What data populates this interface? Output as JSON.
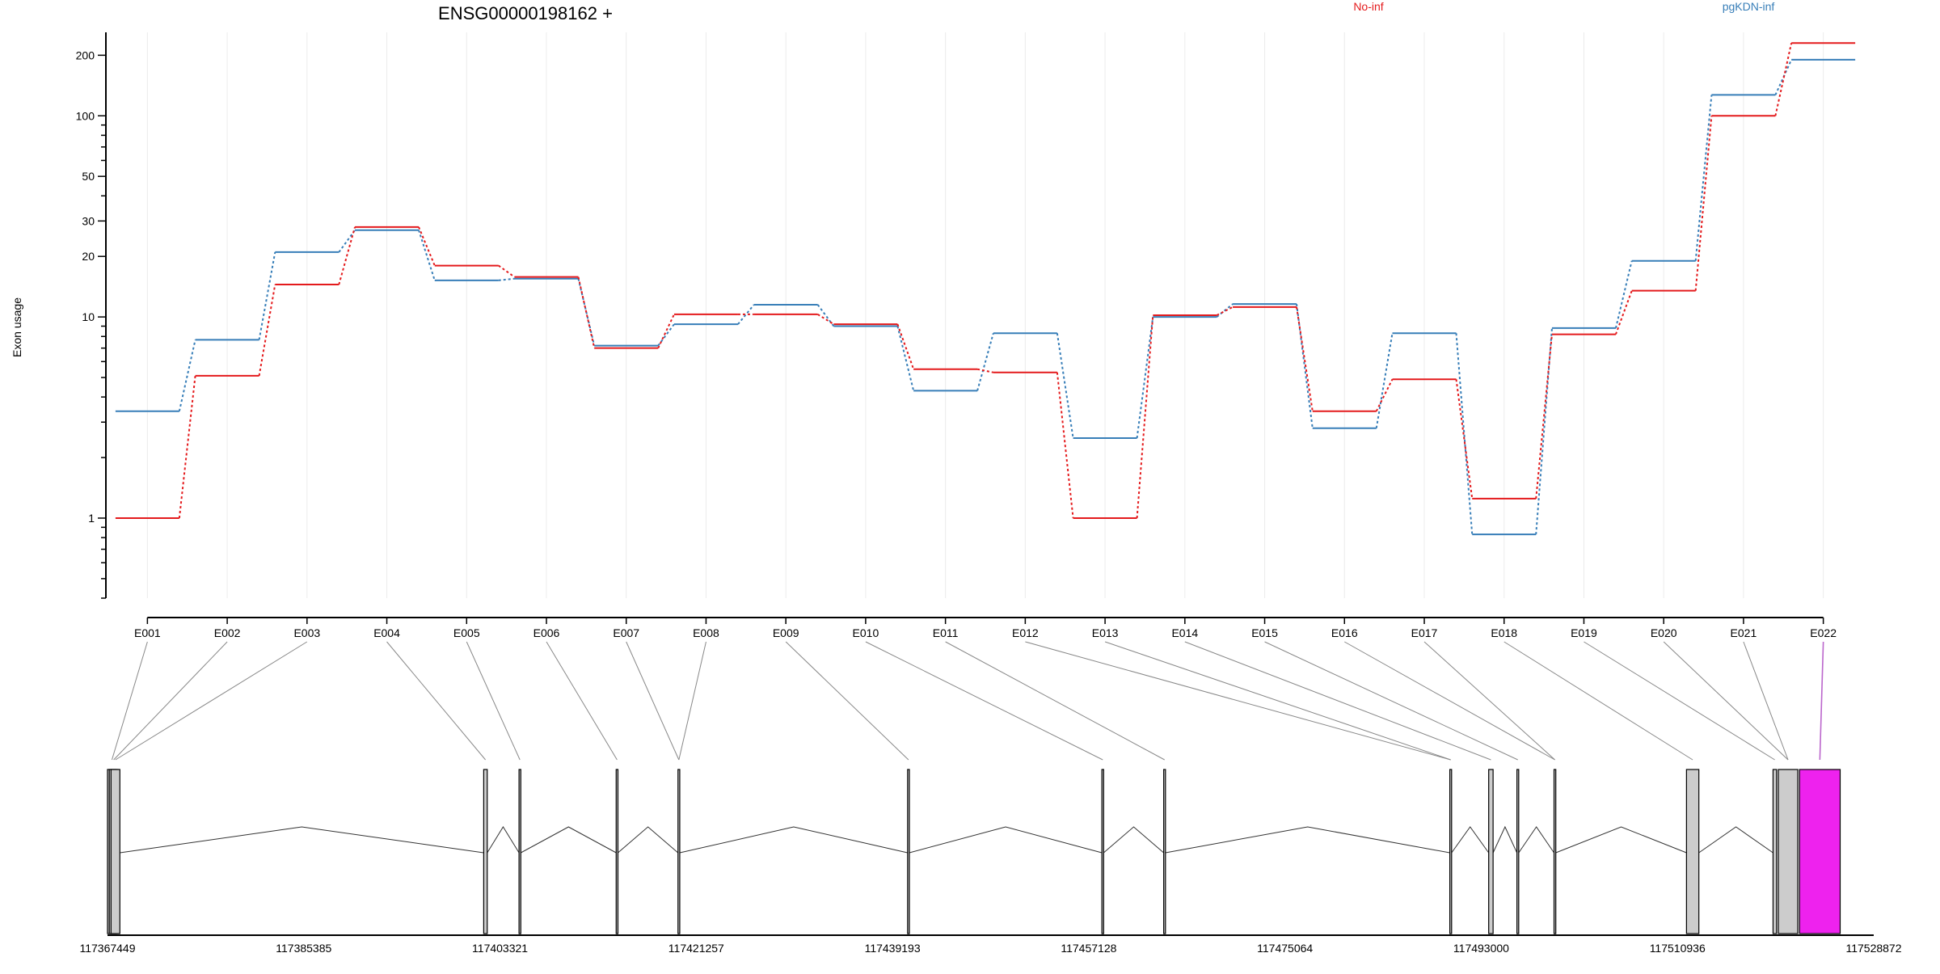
{
  "title": "ENSG00000198162 +",
  "colors": {
    "no_inf": "#e41a1c",
    "pgkdn_inf": "#377eb8",
    "exon_box": "#cccccc",
    "highlight_exon": "#ee22ee",
    "connector": "#888888",
    "highlight_connector": "#bb66cc"
  },
  "chart_data": {
    "type": "line",
    "title": "ENSG00000198162 +",
    "xlabel": "",
    "ylabel": "Exon usage",
    "yscale": "log",
    "ylim": [
      0.4,
      260
    ],
    "yticks": [
      1,
      10,
      20,
      30,
      50,
      100,
      200
    ],
    "grid": true,
    "legend_position": "top",
    "categories": [
      "E001",
      "E002",
      "E003",
      "E004",
      "E005",
      "E006",
      "E007",
      "E008",
      "E009",
      "E010",
      "E011",
      "E012",
      "E013",
      "E014",
      "E015",
      "E016",
      "E017",
      "E018",
      "E019",
      "E020",
      "E021",
      "E022"
    ],
    "series": [
      {
        "name": "No-inf",
        "color": "#e41a1c",
        "values": [
          1.0,
          5.1,
          14.5,
          28.0,
          18.0,
          15.8,
          7.0,
          10.3,
          10.3,
          9.2,
          5.5,
          5.3,
          1.0,
          10.2,
          11.2,
          3.4,
          4.9,
          1.25,
          8.2,
          13.5,
          100,
          230
        ]
      },
      {
        "name": "pgKDN-inf",
        "color": "#377eb8",
        "values": [
          3.4,
          7.7,
          21.0,
          27.0,
          15.2,
          15.5,
          7.2,
          9.2,
          11.5,
          9.0,
          4.3,
          8.3,
          2.5,
          10.0,
          11.6,
          2.8,
          8.3,
          0.83,
          8.8,
          19.0,
          127,
          190
        ]
      }
    ]
  },
  "gene_model": {
    "coordinate_labels": [
      "117367449",
      "117385385",
      "117403321",
      "117421257",
      "117439193",
      "117457128",
      "117475064",
      "117493000",
      "117510936",
      "117528872"
    ],
    "coordinate_range": [
      117367449,
      117528872
    ]
  }
}
